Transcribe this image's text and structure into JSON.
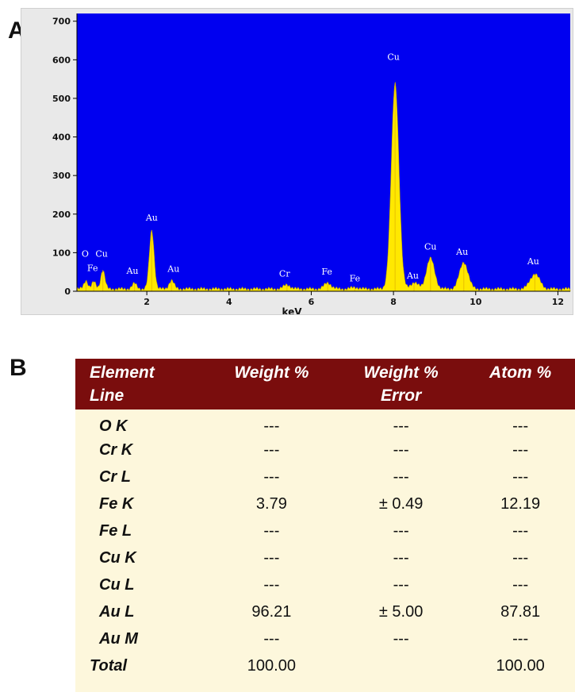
{
  "panels": {
    "a": "A",
    "b": "B"
  },
  "chart_data": {
    "type": "line",
    "title": "",
    "xlabel": "keV",
    "ylabel": "",
    "xlim": [
      0.3,
      12.3
    ],
    "ylim": [
      0,
      720
    ],
    "xticks": [
      2,
      4,
      6,
      8,
      10,
      12
    ],
    "yticks": [
      0,
      100,
      200,
      300,
      400,
      500,
      600,
      700
    ],
    "grid": false,
    "background_color": "#0000f0",
    "series_color": "#ffe800",
    "baseline": 6,
    "peaks": [
      {
        "label": "O",
        "kev": 0.52,
        "counts": 28
      },
      {
        "label": "Fe",
        "kev": 0.71,
        "counts": 24
      },
      {
        "label": "Cu",
        "kev": 0.93,
        "counts": 55
      },
      {
        "label": "Au",
        "kev": 1.7,
        "counts": 20
      },
      {
        "label": "Au",
        "kev": 2.12,
        "counts": 158
      },
      {
        "label": "Au",
        "kev": 2.6,
        "counts": 28
      },
      {
        "label": "Cr",
        "kev": 5.41,
        "counts": 17
      },
      {
        "label": "Fe",
        "kev": 6.4,
        "counts": 22
      },
      {
        "label": "Fe",
        "kev": 7.06,
        "counts": 10
      },
      {
        "label": "Cu",
        "kev": 8.04,
        "counts": 540
      },
      {
        "label": "Au",
        "kev": 8.5,
        "counts": 22
      },
      {
        "label": "Cu",
        "kev": 8.9,
        "counts": 85
      },
      {
        "label": "Au",
        "kev": 9.71,
        "counts": 75
      },
      {
        "label": "Au",
        "kev": 11.44,
        "counts": 45
      }
    ],
    "peak_labels": [
      {
        "text": "O",
        "kev": 0.5,
        "counts": 90
      },
      {
        "text": "Cu",
        "kev": 0.9,
        "counts": 90
      },
      {
        "text": "Fe",
        "kev": 0.68,
        "counts": 52
      },
      {
        "text": "Au",
        "kev": 2.12,
        "counts": 183
      },
      {
        "text": "Au",
        "kev": 1.65,
        "counts": 45
      },
      {
        "text": "Au",
        "kev": 2.65,
        "counts": 50
      },
      {
        "text": "Cr",
        "kev": 5.35,
        "counts": 38
      },
      {
        "text": "Fe",
        "kev": 6.38,
        "counts": 43
      },
      {
        "text": "Fe",
        "kev": 7.06,
        "counts": 26
      },
      {
        "text": "Cu",
        "kev": 8.0,
        "counts": 600
      },
      {
        "text": "Au",
        "kev": 8.47,
        "counts": 33
      },
      {
        "text": "Cu",
        "kev": 8.9,
        "counts": 108
      },
      {
        "text": "Au",
        "kev": 9.67,
        "counts": 95
      },
      {
        "text": "Au",
        "kev": 11.4,
        "counts": 70
      }
    ]
  },
  "table": {
    "headers": [
      [
        "Element",
        "Line"
      ],
      [
        "Weight %"
      ],
      [
        "Weight %",
        "Error"
      ],
      [
        "Atom %"
      ]
    ],
    "rows": [
      [
        "O K",
        "---",
        "---",
        "---"
      ],
      [
        "Cr K",
        "---",
        "---",
        "---"
      ],
      [
        "Cr L",
        "---",
        "---",
        "---"
      ],
      [
        "Fe K",
        "3.79",
        "± 0.49",
        "12.19"
      ],
      [
        "Fe L",
        "---",
        "---",
        "---"
      ],
      [
        "Cu K",
        "---",
        "---",
        "---"
      ],
      [
        "Cu L",
        "---",
        "---",
        "---"
      ],
      [
        "Au L",
        "96.21",
        "± 5.00",
        "87.81"
      ],
      [
        "Au M",
        "---",
        "---",
        "---"
      ],
      [
        "Total",
        "100.00",
        "",
        "100.00"
      ]
    ],
    "header_color": "#7a0d0d",
    "body_color": "#fdf7dc"
  }
}
